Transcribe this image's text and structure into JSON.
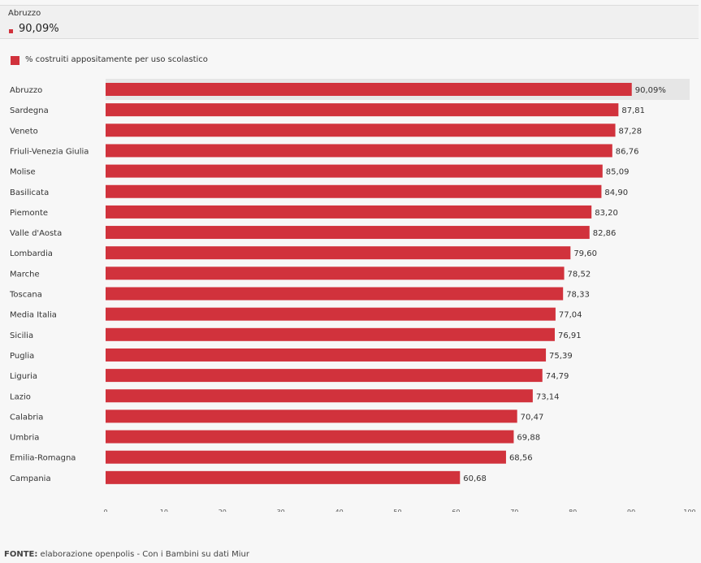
{
  "tooltip": {
    "region": "Abruzzo",
    "value": "90,09%"
  },
  "legend": {
    "label": "% costruiti appositamente per uso scolastico"
  },
  "colors": {
    "bar": "#d1323c",
    "highlight_band": "#e6e6e6"
  },
  "footer": {
    "label": "FONTE:",
    "text": " elaborazione openpolis - Con i Bambini su dati Miur"
  },
  "chart_data": {
    "type": "bar",
    "orientation": "horizontal",
    "categories": [
      "Abruzzo",
      "Sardegna",
      "Veneto",
      "Friuli-Venezia Giulia",
      "Molise",
      "Basilicata",
      "Piemonte",
      "Valle d'Aosta",
      "Lombardia",
      "Marche",
      "Toscana",
      "Media Italia",
      "Sicilia",
      "Puglia",
      "Liguria",
      "Lazio",
      "Calabria",
      "Umbria",
      "Emilia-Romagna",
      "Campania"
    ],
    "values": [
      90.09,
      87.81,
      87.28,
      86.76,
      85.09,
      84.9,
      83.2,
      82.86,
      79.6,
      78.52,
      78.33,
      77.04,
      76.91,
      75.39,
      74.79,
      73.14,
      70.47,
      69.88,
      68.56,
      60.68
    ],
    "value_labels": [
      "90,09%",
      "87,81",
      "87,28",
      "86,76",
      "85,09",
      "84,90",
      "83,20",
      "82,86",
      "79,60",
      "78,52",
      "78,33",
      "77,04",
      "76,91",
      "75,39",
      "74,79",
      "73,14",
      "70,47",
      "69,88",
      "68,56",
      "60,68"
    ],
    "series": [
      {
        "name": "% costruiti appositamente per uso scolastico"
      }
    ],
    "highlighted_category": "Abruzzo",
    "xlim": [
      0,
      100
    ],
    "xticks": [
      0,
      10,
      20,
      30,
      40,
      50,
      60,
      70,
      80,
      90,
      100
    ],
    "grid": false,
    "legend_position": "top-left"
  }
}
